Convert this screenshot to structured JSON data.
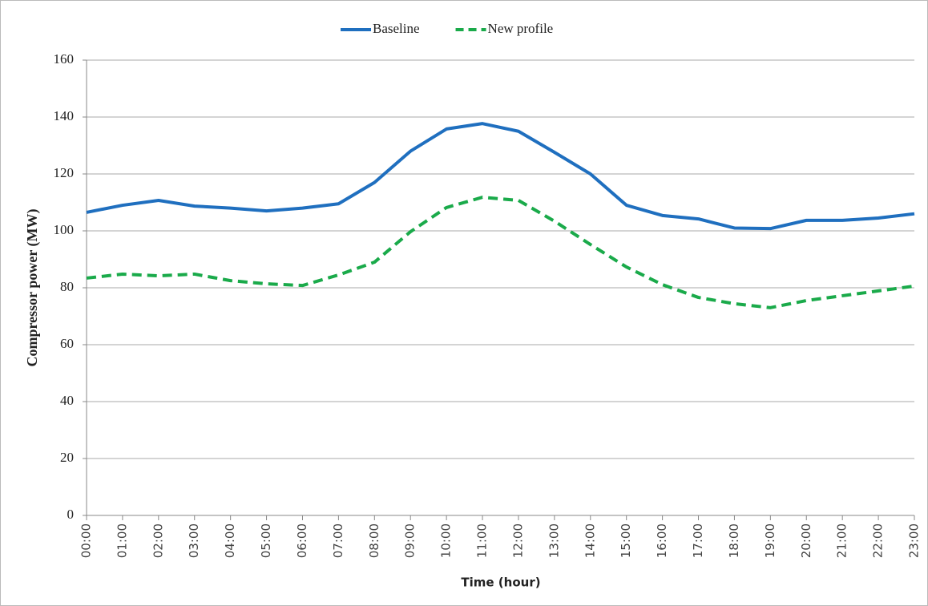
{
  "chart_data": {
    "type": "line",
    "x_label": "Time (hour)",
    "y_label": "Compressor power (MW)",
    "categories": [
      "00:00",
      "01:00",
      "02:00",
      "03:00",
      "04:00",
      "05:00",
      "06:00",
      "07:00",
      "08:00",
      "09:00",
      "10:00",
      "11:00",
      "12:00",
      "13:00",
      "14:00",
      "15:00",
      "16:00",
      "17:00",
      "18:00",
      "19:00",
      "20:00",
      "21:00",
      "22:00",
      "23:00"
    ],
    "series": [
      {
        "name": "Baseline",
        "color": "#1f6fbf",
        "dashed": false,
        "values": [
          106.5,
          109,
          110.7,
          108.7,
          108,
          107,
          108,
          109.5,
          117,
          128,
          135.8,
          137.7,
          135,
          127.6,
          120,
          109,
          105.4,
          104.2,
          101,
          100.8,
          103.7,
          103.7,
          104.5,
          106
        ]
      },
      {
        "name": "New profile",
        "color": "#1aaa4a",
        "dashed": true,
        "values": [
          83.4,
          84.8,
          84.2,
          84.8,
          82.5,
          81.4,
          80.8,
          84.5,
          89,
          99.7,
          108.2,
          111.8,
          110.7,
          103.4,
          95.2,
          87.3,
          81.1,
          76.6,
          74.4,
          73,
          75.5,
          77.2,
          78.9,
          80.6
        ]
      }
    ],
    "ylim": [
      0,
      160
    ],
    "yticks": [
      0,
      20,
      40,
      60,
      80,
      100,
      120,
      140,
      160
    ],
    "grid": true,
    "legend": "top"
  }
}
